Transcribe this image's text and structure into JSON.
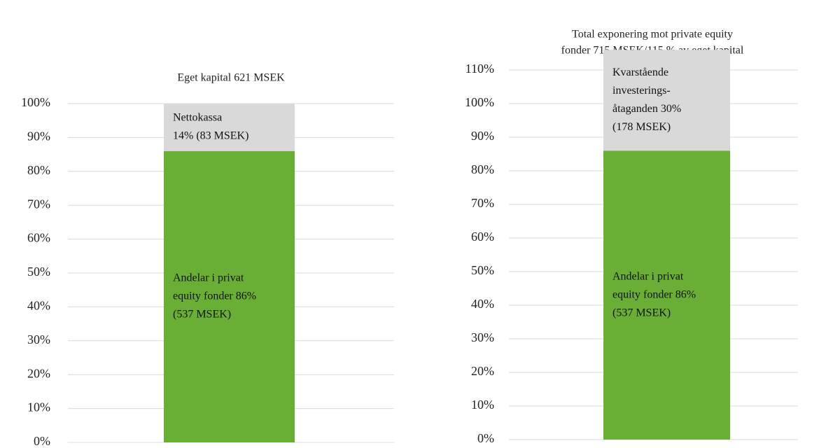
{
  "chart_data": [
    {
      "type": "stacked_bar",
      "title": [
        "Eget kapital 621 MSEK"
      ],
      "ylim": [
        0,
        100
      ],
      "yticks": [
        {
          "value": 0,
          "label": "0%"
        },
        {
          "value": 10,
          "label": "10%"
        },
        {
          "value": 20,
          "label": "20%"
        },
        {
          "value": 30,
          "label": "30%"
        },
        {
          "value": 40,
          "label": "40%"
        },
        {
          "value": 50,
          "label": "50%"
        },
        {
          "value": 60,
          "label": "60%"
        },
        {
          "value": 70,
          "label": "70%"
        },
        {
          "value": 80,
          "label": "80%"
        },
        {
          "value": 90,
          "label": "90%"
        },
        {
          "value": 100,
          "label": "100%"
        }
      ],
      "grid": true,
      "series": [
        {
          "color": "#6aaf35",
          "values": [
            86
          ],
          "value_labels": [
            [
              "Andelar i privat",
              "equity fonder 86%",
              "(537 MSEK)"
            ]
          ]
        },
        {
          "color": "#d9d9d9",
          "values": [
            14
          ],
          "value_labels": [
            [
              "Nettokassa",
              "14% (83 MSEK)"
            ]
          ]
        }
      ]
    },
    {
      "type": "stacked_bar",
      "title": [
        "Total exponering mot private equity",
        "fonder 715 MSEK/115 % av eget kapital"
      ],
      "ylim": [
        0,
        116
      ],
      "yticks": [
        {
          "value": 0,
          "label": "0%"
        },
        {
          "value": 10,
          "label": "10%"
        },
        {
          "value": 20,
          "label": "20%"
        },
        {
          "value": 30,
          "label": "30%"
        },
        {
          "value": 40,
          "label": "40%"
        },
        {
          "value": 50,
          "label": "50%"
        },
        {
          "value": 60,
          "label": "60%"
        },
        {
          "value": 70,
          "label": "70%"
        },
        {
          "value": 80,
          "label": "80%"
        },
        {
          "value": 90,
          "label": "90%"
        },
        {
          "value": 100,
          "label": "100%"
        },
        {
          "value": 110,
          "label": "110%"
        }
      ],
      "grid": true,
      "series": [
        {
          "color": "#6aaf35",
          "values": [
            86
          ],
          "value_labels": [
            [
              "Andelar i privat",
              "equity fonder 86%",
              "(537 MSEK)"
            ]
          ]
        },
        {
          "color": "#d9d9d9",
          "values": [
            30
          ],
          "value_labels": [
            [
              "Kvarstående",
              "investerings-",
              "åtaganden 30%",
              "(178 MSEK)"
            ]
          ]
        }
      ]
    }
  ]
}
